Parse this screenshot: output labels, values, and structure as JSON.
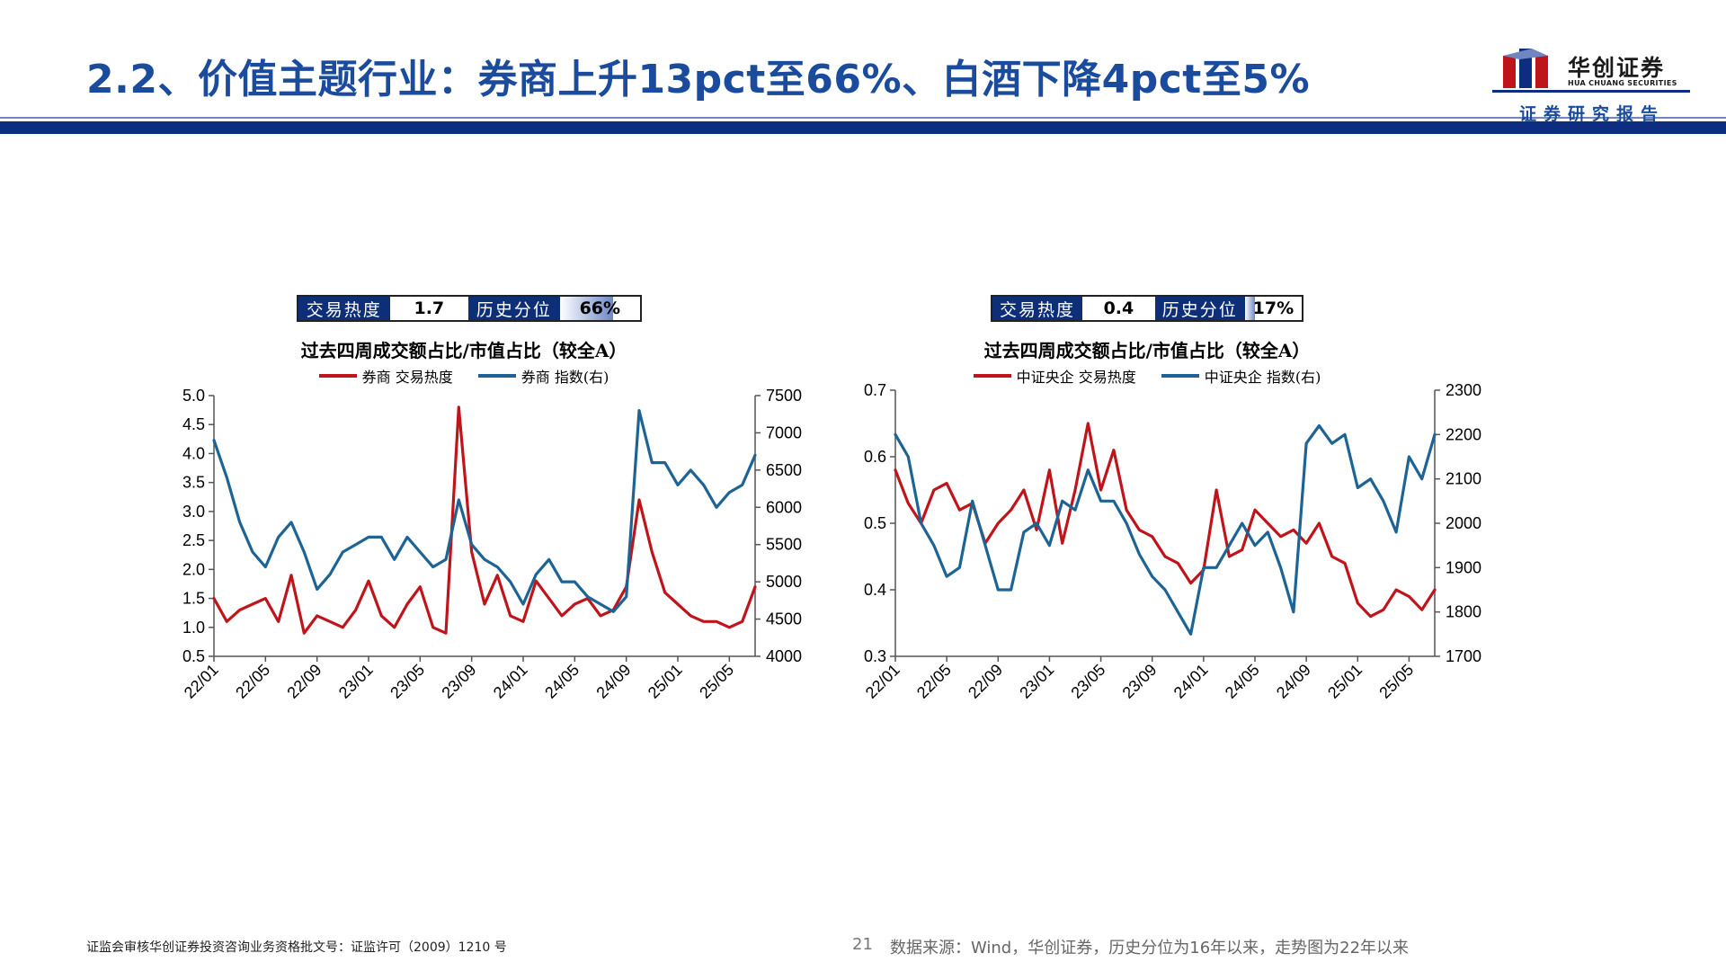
{
  "page": {
    "title": "2.2、价值主题行业：券商上升13pct至66%、白酒下降4pct至5%",
    "logo_cn": "华创证券",
    "logo_en": "HUA CHUANG SECURITIES",
    "logo_sub": "证券研究报告",
    "page_number": "21",
    "footer_left": "证监会审核华创证券投资咨询业务资格批文号：证监许可（2009）1210 号",
    "footer_source": "数据来源：Wind，华创证券，历史分位为16年以来，走势图为22年以来"
  },
  "colors": {
    "title_blue": "#1b4b9c",
    "navy": "#0e2f78",
    "heat_red": "#c0141b",
    "index_blue": "#1d6494"
  },
  "panels": [
    {
      "heat_label": "交易热度",
      "heat_value": "1.7",
      "pct_label": "历史分位",
      "pct_value": "66%",
      "pct_fraction": 0.66
    },
    {
      "heat_label": "交易热度",
      "heat_value": "0.4",
      "pct_label": "历史分位",
      "pct_value": "17%",
      "pct_fraction": 0.17
    }
  ],
  "chart_data": [
    {
      "type": "line",
      "title": "过去四周成交额占比/市值占比（较全A）",
      "x_ticks": [
        "22/01",
        "22/05",
        "22/09",
        "23/01",
        "23/05",
        "23/09",
        "24/01",
        "24/05",
        "24/09",
        "25/01",
        "25/05"
      ],
      "x_range": [
        "2022-01",
        "2025-07"
      ],
      "ylim_left": [
        0.5,
        5.0
      ],
      "yticks_left": [
        "5.0",
        "4.5",
        "4.0",
        "3.5",
        "3.0",
        "2.5",
        "2.0",
        "1.5",
        "1.0",
        "0.5"
      ],
      "ylim_right": [
        4000,
        7500
      ],
      "yticks_right": [
        "7500",
        "7000",
        "6500",
        "6000",
        "5500",
        "5000",
        "4500",
        "4000"
      ],
      "grid": false,
      "legend_position": "top",
      "series": [
        {
          "name": "券商 交易热度",
          "axis": "left",
          "color": "#c0141b",
          "x": [
            "2022-01",
            "2022-02",
            "2022-03",
            "2022-04",
            "2022-05",
            "2022-06",
            "2022-07",
            "2022-08",
            "2022-09",
            "2022-10",
            "2022-11",
            "2022-12",
            "2023-01",
            "2023-02",
            "2023-03",
            "2023-04",
            "2023-05",
            "2023-06",
            "2023-07",
            "2023-08",
            "2023-09",
            "2023-10",
            "2023-11",
            "2023-12",
            "2024-01",
            "2024-02",
            "2024-03",
            "2024-04",
            "2024-05",
            "2024-06",
            "2024-07",
            "2024-08",
            "2024-09",
            "2024-10",
            "2024-11",
            "2024-12",
            "2025-01",
            "2025-02",
            "2025-03",
            "2025-04",
            "2025-05",
            "2025-06",
            "2025-07"
          ],
          "values": [
            1.5,
            1.1,
            1.3,
            1.4,
            1.5,
            1.1,
            1.9,
            0.9,
            1.2,
            1.1,
            1.0,
            1.3,
            1.8,
            1.2,
            1.0,
            1.4,
            1.7,
            1.0,
            0.9,
            4.8,
            2.3,
            1.4,
            1.9,
            1.2,
            1.1,
            1.8,
            1.5,
            1.2,
            1.4,
            1.5,
            1.2,
            1.3,
            1.7,
            3.2,
            2.3,
            1.6,
            1.4,
            1.2,
            1.1,
            1.1,
            1.0,
            1.1,
            1.7
          ]
        },
        {
          "name": "券商 指数(右)",
          "axis": "right",
          "color": "#1d6494",
          "x": [
            "2022-01",
            "2022-02",
            "2022-03",
            "2022-04",
            "2022-05",
            "2022-06",
            "2022-07",
            "2022-08",
            "2022-09",
            "2022-10",
            "2022-11",
            "2022-12",
            "2023-01",
            "2023-02",
            "2023-03",
            "2023-04",
            "2023-05",
            "2023-06",
            "2023-07",
            "2023-08",
            "2023-09",
            "2023-10",
            "2023-11",
            "2023-12",
            "2024-01",
            "2024-02",
            "2024-03",
            "2024-04",
            "2024-05",
            "2024-06",
            "2024-07",
            "2024-08",
            "2024-09",
            "2024-10",
            "2024-11",
            "2024-12",
            "2025-01",
            "2025-02",
            "2025-03",
            "2025-04",
            "2025-05",
            "2025-06",
            "2025-07"
          ],
          "values": [
            6900,
            6400,
            5800,
            5400,
            5200,
            5600,
            5800,
            5400,
            4900,
            5100,
            5400,
            5500,
            5600,
            5600,
            5300,
            5600,
            5400,
            5200,
            5300,
            6100,
            5500,
            5300,
            5200,
            5000,
            4700,
            5100,
            5300,
            5000,
            5000,
            4800,
            4700,
            4600,
            4800,
            7300,
            6600,
            6600,
            6300,
            6500,
            6300,
            6000,
            6200,
            6300,
            6700
          ]
        }
      ]
    },
    {
      "type": "line",
      "title": "过去四周成交额占比/市值占比（较全A）",
      "x_ticks": [
        "22/01",
        "22/05",
        "22/09",
        "23/01",
        "23/05",
        "23/09",
        "24/01",
        "24/05",
        "24/09",
        "25/01",
        "25/05"
      ],
      "x_range": [
        "2022-01",
        "2025-07"
      ],
      "ylim_left": [
        0.3,
        0.7
      ],
      "yticks_left": [
        "0.7",
        "0.6",
        "0.5",
        "0.4",
        "0.3"
      ],
      "ylim_right": [
        1700,
        2300
      ],
      "yticks_right": [
        "2300",
        "2200",
        "2100",
        "2000",
        "1900",
        "1800",
        "1700"
      ],
      "grid": false,
      "legend_position": "top",
      "series": [
        {
          "name": "中证央企 交易热度",
          "axis": "left",
          "color": "#c0141b",
          "x": [
            "2022-01",
            "2022-02",
            "2022-03",
            "2022-04",
            "2022-05",
            "2022-06",
            "2022-07",
            "2022-08",
            "2022-09",
            "2022-10",
            "2022-11",
            "2022-12",
            "2023-01",
            "2023-02",
            "2023-03",
            "2023-04",
            "2023-05",
            "2023-06",
            "2023-07",
            "2023-08",
            "2023-09",
            "2023-10",
            "2023-11",
            "2023-12",
            "2024-01",
            "2024-02",
            "2024-03",
            "2024-04",
            "2024-05",
            "2024-06",
            "2024-07",
            "2024-08",
            "2024-09",
            "2024-10",
            "2024-11",
            "2024-12",
            "2025-01",
            "2025-02",
            "2025-03",
            "2025-04",
            "2025-05",
            "2025-06",
            "2025-07"
          ],
          "values": [
            0.58,
            0.53,
            0.5,
            0.55,
            0.56,
            0.52,
            0.53,
            0.47,
            0.5,
            0.52,
            0.55,
            0.49,
            0.58,
            0.47,
            0.55,
            0.65,
            0.55,
            0.61,
            0.52,
            0.49,
            0.48,
            0.45,
            0.44,
            0.41,
            0.43,
            0.55,
            0.45,
            0.46,
            0.52,
            0.5,
            0.48,
            0.49,
            0.47,
            0.5,
            0.45,
            0.44,
            0.38,
            0.36,
            0.37,
            0.4,
            0.39,
            0.37,
            0.4
          ]
        },
        {
          "name": "中证央企 指数(右)",
          "axis": "right",
          "color": "#1d6494",
          "x": [
            "2022-01",
            "2022-02",
            "2022-03",
            "2022-04",
            "2022-05",
            "2022-06",
            "2022-07",
            "2022-08",
            "2022-09",
            "2022-10",
            "2022-11",
            "2022-12",
            "2023-01",
            "2023-02",
            "2023-03",
            "2023-04",
            "2023-05",
            "2023-06",
            "2023-07",
            "2023-08",
            "2023-09",
            "2023-10",
            "2023-11",
            "2023-12",
            "2024-01",
            "2024-02",
            "2024-03",
            "2024-04",
            "2024-05",
            "2024-06",
            "2024-07",
            "2024-08",
            "2024-09",
            "2024-10",
            "2024-11",
            "2024-12",
            "2025-01",
            "2025-02",
            "2025-03",
            "2025-04",
            "2025-05",
            "2025-06",
            "2025-07"
          ],
          "values": [
            2200,
            2150,
            2000,
            1950,
            1880,
            1900,
            2050,
            1950,
            1850,
            1850,
            1980,
            2000,
            1950,
            2050,
            2030,
            2120,
            2050,
            2050,
            2000,
            1930,
            1880,
            1850,
            1800,
            1750,
            1900,
            1900,
            1950,
            2000,
            1950,
            1980,
            1900,
            1800,
            2180,
            2220,
            2180,
            2200,
            2080,
            2100,
            2050,
            1980,
            2150,
            2100,
            2200
          ]
        }
      ]
    }
  ]
}
